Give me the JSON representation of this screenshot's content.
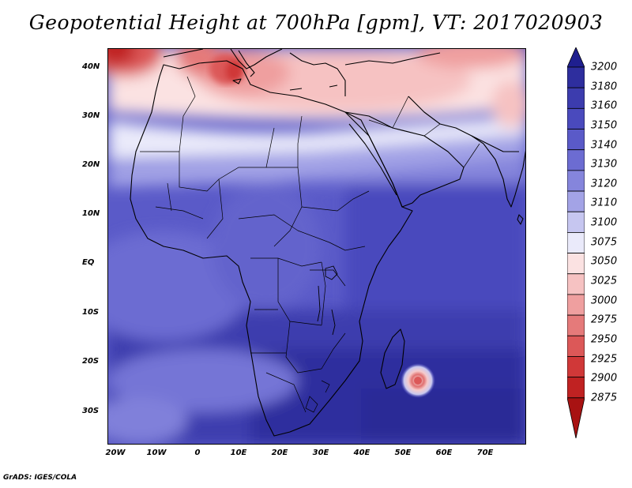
{
  "title": "Geopotential Height at 700hPa [gpm], VT: 2017020903",
  "lat_labels": [
    "40N",
    "30N",
    "20N",
    "10N",
    "EQ",
    "10S",
    "20S",
    "30S"
  ],
  "lon_labels": [
    "20W",
    "10W",
    "0",
    "10E",
    "20E",
    "30E",
    "40E",
    "50E",
    "60E",
    "70E"
  ],
  "colorbar": {
    "levels": [
      "3200",
      "3180",
      "3160",
      "3150",
      "3140",
      "3130",
      "3120",
      "3110",
      "3100",
      "3075",
      "3050",
      "3025",
      "3000",
      "2975",
      "2950",
      "2925",
      "2900",
      "2875"
    ],
    "colors": [
      "#1f1f8f",
      "#2e2e9e",
      "#3c3cae",
      "#4a4abd",
      "#5a5ac8",
      "#6c6cd2",
      "#8585dc",
      "#a3a3e6",
      "#c6c6f0",
      "#eaeafa",
      "#fbe2e2",
      "#f6c2c2",
      "#ef9f9f",
      "#e57a7a",
      "#dc5858",
      "#d03838",
      "#c02222",
      "#a81212"
    ]
  },
  "footer": "GrADS: IGES/COLA"
}
